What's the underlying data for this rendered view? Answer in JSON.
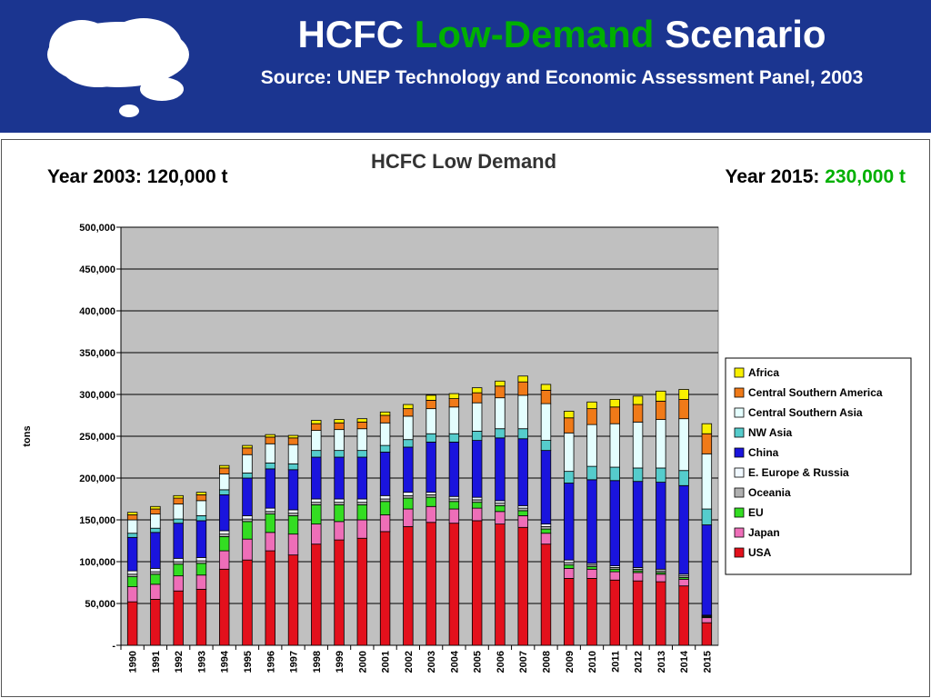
{
  "header": {
    "title_prefix": "HCFC",
    "title_highlight": "Low-Demand",
    "title_suffix": "Scenario",
    "subtitle": "Source: UNEP Technology and Economic Assessment Panel, 2003",
    "highlight_color": "#00b000",
    "background_color": "#1b3590"
  },
  "annotations": {
    "left": "Year 2003: 120,000 t",
    "right_prefix": "Year 2015:",
    "right_value": "230,000 t"
  },
  "chart_data": {
    "type": "bar",
    "stacked": true,
    "title": "HCFC Low Demand",
    "xlabel": "",
    "ylabel": "tons",
    "ylim": [
      0,
      500000
    ],
    "yticks": [
      "-",
      "50,000",
      "100,000",
      "150,000",
      "200,000",
      "250,000",
      "300,000",
      "350,000",
      "400,000",
      "450,000",
      "500,000"
    ],
    "grid": "horizontal",
    "legend_position": "right",
    "plot_background": "#c0c0c0",
    "categories": [
      "1990",
      "1991",
      "1992",
      "1993",
      "1994",
      "1995",
      "1996",
      "1997",
      "1998",
      "1999",
      "2000",
      "2001",
      "2002",
      "2003",
      "2004",
      "2005",
      "2006",
      "2007",
      "2008",
      "2009",
      "2010",
      "2011",
      "2012",
      "2013",
      "2014",
      "2015"
    ],
    "series": [
      {
        "name": "USA",
        "color": "#e3101c",
        "values": [
          52000,
          55000,
          65000,
          67000,
          91000,
          102000,
          113000,
          108000,
          121000,
          126000,
          128000,
          136000,
          142000,
          147000,
          146000,
          149000,
          145000,
          141000,
          121000,
          80000,
          80000,
          78000,
          77000,
          76000,
          71000,
          27000
        ]
      },
      {
        "name": "Japan",
        "color": "#ee6eb8",
        "values": [
          18000,
          18000,
          18000,
          17000,
          22000,
          25000,
          22000,
          25000,
          24000,
          22000,
          22000,
          20000,
          21000,
          19000,
          17000,
          15000,
          15000,
          14000,
          13000,
          12000,
          11000,
          10000,
          10000,
          9000,
          8000,
          6000
        ]
      },
      {
        "name": "EU",
        "color": "#33dd22",
        "values": [
          12000,
          12000,
          14000,
          14000,
          17000,
          21000,
          22000,
          22000,
          23000,
          20000,
          18000,
          16000,
          13000,
          11000,
          9000,
          7000,
          7000,
          6000,
          5000,
          4000,
          3000,
          3000,
          2000,
          2000,
          2000,
          1000
        ]
      },
      {
        "name": "Oceania",
        "color": "#b0b0b0",
        "values": [
          3000,
          3000,
          3000,
          3000,
          3000,
          3000,
          3000,
          3000,
          3000,
          3000,
          3000,
          3000,
          3000,
          3000,
          3000,
          3000,
          3000,
          3000,
          3000,
          3000,
          2000,
          2000,
          2000,
          2000,
          2000,
          1000
        ]
      },
      {
        "name": "E. Europe & Russia",
        "color": "#f0f8ff",
        "values": [
          4000,
          4000,
          4000,
          4000,
          4000,
          4000,
          4000,
          4000,
          4000,
          4000,
          4000,
          4000,
          4000,
          3000,
          3000,
          3000,
          3000,
          3000,
          3000,
          3000,
          2000,
          2000,
          2000,
          2000,
          2000,
          1000
        ]
      },
      {
        "name": "China",
        "color": "#1a14dd",
        "values": [
          40000,
          43000,
          42000,
          44000,
          43000,
          45000,
          47000,
          48000,
          50000,
          50000,
          50000,
          52000,
          54000,
          60000,
          65000,
          68000,
          75000,
          80000,
          88000,
          92000,
          100000,
          102000,
          103000,
          104000,
          106000,
          108000
        ]
      },
      {
        "name": "NW Asia",
        "color": "#55cccc",
        "values": [
          5000,
          5000,
          5000,
          6000,
          6000,
          6000,
          7000,
          7000,
          8000,
          8000,
          8000,
          8000,
          9000,
          10000,
          10000,
          11000,
          11000,
          12000,
          12000,
          14000,
          16000,
          16000,
          16000,
          17000,
          18000,
          19000
        ]
      },
      {
        "name": "Central Southern Asia",
        "color": "#e4fefe",
        "values": [
          16000,
          17000,
          18000,
          18000,
          19000,
          22000,
          23000,
          23000,
          24000,
          25000,
          26000,
          27000,
          28000,
          30000,
          32000,
          34000,
          37000,
          40000,
          44000,
          46000,
          50000,
          52000,
          55000,
          58000,
          62000,
          66000
        ]
      },
      {
        "name": "Central Southern America",
        "color": "#f07a18",
        "values": [
          6000,
          6000,
          7000,
          7000,
          7000,
          8000,
          8000,
          8000,
          8000,
          8000,
          8000,
          9000,
          9000,
          10000,
          10000,
          12000,
          14000,
          16000,
          16000,
          18000,
          19000,
          20000,
          21000,
          22000,
          23000,
          24000
        ]
      },
      {
        "name": "Africa",
        "color": "#f8f000",
        "values": [
          3000,
          3000,
          3000,
          3000,
          3000,
          3000,
          3000,
          3000,
          4000,
          4000,
          4000,
          4000,
          5000,
          6000,
          6000,
          6000,
          6000,
          7000,
          7000,
          8000,
          8000,
          9000,
          10000,
          12000,
          12000,
          12000
        ]
      }
    ]
  }
}
